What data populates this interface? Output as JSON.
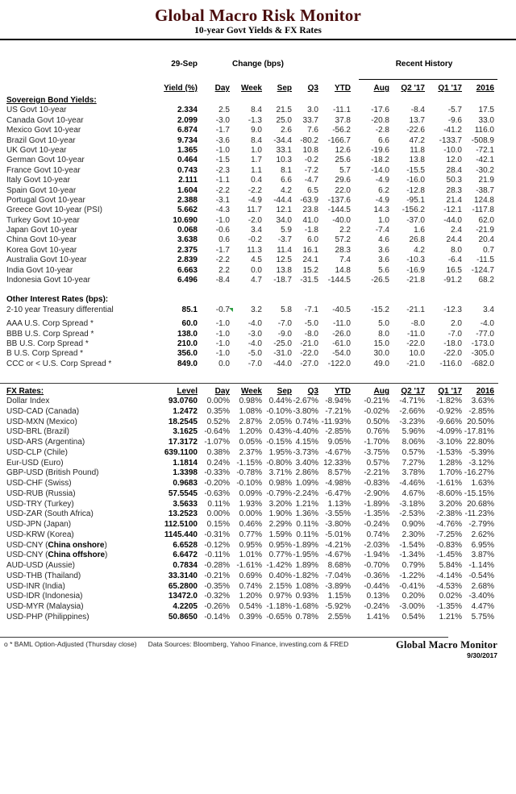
{
  "header": {
    "title": "Global Macro Risk Monitor",
    "subtitle": "10-year Govt Yields & FX Rates"
  },
  "column_groups": {
    "asof": "29-Sep",
    "change": "Change (bps)",
    "recent": "Recent History"
  },
  "bond_table": {
    "header_rows": [
      [
        "",
        "Yield (%)",
        "Day",
        "Week",
        "Sep",
        "Q3",
        "YTD",
        "Aug",
        "Q2 '17",
        "Q1 '17",
        "2016"
      ]
    ],
    "heading": "Sovereign Bond Yields:",
    "rows": [
      [
        "US Govt 10-year",
        "2.334",
        "2.5",
        "8.4",
        "21.5",
        "3.0",
        "-11.1",
        "-17.6",
        "-8.4",
        "-5.7",
        "17.5"
      ],
      [
        "Canada Govt 10-year",
        "2.099",
        "-3.0",
        "-1.3",
        "25.0",
        "33.7",
        "37.8",
        "-20.8",
        "13.7",
        "-9.6",
        "33.0"
      ],
      [
        "Mexico Govt 10-year",
        "6.874",
        "-1.7",
        "9.0",
        "2.6",
        "7.6",
        "-56.2",
        "-2.8",
        "-22.6",
        "-41.2",
        "116.0"
      ],
      [
        "Brazil Govt 10-year",
        "9.734",
        "-3.6",
        "8.4",
        "-34.4",
        "-80.2",
        "-166.7",
        "6.6",
        "47.2",
        "-133.7",
        "-508.9"
      ],
      [
        "UK Govt 10-year",
        "1.365",
        "-1.0",
        "1.0",
        "33.1",
        "10.8",
        "12.6",
        "-19.6",
        "11.8",
        "-10.0",
        "-72.1"
      ],
      [
        "German Govt 10-year",
        "0.464",
        "-1.5",
        "1.7",
        "10.3",
        "-0.2",
        "25.6",
        "-18.2",
        "13.8",
        "12.0",
        "-42.1"
      ],
      [
        "France Govt 10-year",
        "0.743",
        "-2.3",
        "1.1",
        "8.1",
        "-7.2",
        "5.7",
        "-14.0",
        "-15.5",
        "28.4",
        "-30.2"
      ],
      [
        "Italy Govt 10-year",
        "2.111",
        "-1.1",
        "0.4",
        "6.6",
        "-4.7",
        "29.6",
        "-4.9",
        "-16.0",
        "50.3",
        "21.9"
      ],
      [
        "Spain Govt 10-year",
        "1.604",
        "-2.2",
        "-2.2",
        "4.2",
        "6.5",
        "22.0",
        "6.2",
        "-12.8",
        "28.3",
        "-38.7"
      ],
      [
        "Portugal Govt 10-year",
        "2.388",
        "-3.1",
        "-4.9",
        "-44.4",
        "-63.9",
        "-137.6",
        "-4.9",
        "-95.1",
        "21.4",
        "124.8"
      ],
      [
        "Greece Govt 10-year (PSI)",
        "5.662",
        "-4.3",
        "11.7",
        "12.1",
        "23.8",
        "-144.5",
        "14.3",
        "-156.2",
        "-12.1",
        "-117.8"
      ],
      [
        "Turkey Govt 10-year",
        "10.690",
        "-1.0",
        "-2.0",
        "34.0",
        "41.0",
        "-40.0",
        "1.0",
        "-37.0",
        "-44.0",
        "62.0"
      ],
      [
        "Japan Govt 10-year",
        "0.068",
        "-0.6",
        "3.4",
        "5.9",
        "-1.8",
        "2.2",
        "-7.4",
        "1.6",
        "2.4",
        "-21.9"
      ],
      [
        "China Govt 10-year",
        "3.638",
        "0.6",
        "-0.2",
        "-3.7",
        "6.0",
        "57.2",
        "4.6",
        "26.8",
        "24.4",
        "20.4"
      ],
      [
        "Korea Govt 10-year",
        "2.375",
        "-1.7",
        "11.3",
        "11.4",
        "16.1",
        "28.3",
        "3.6",
        "4.2",
        "8.0",
        "0.7"
      ],
      [
        "Australia Govt 10-year",
        "2.839",
        "-2.2",
        "4.5",
        "12.5",
        "24.1",
        "7.4",
        "3.6",
        "-10.3",
        "-6.4",
        "-11.5"
      ],
      [
        "India Govt 10-year",
        "6.663",
        "2.2",
        "0.0",
        "13.8",
        "15.2",
        "14.8",
        "5.6",
        "-16.9",
        "16.5",
        "-124.7"
      ],
      [
        "Indonesia Govt 10-year",
        "6.496",
        "-8.4",
        "4.7",
        "-18.7",
        "-31.5",
        "-144.5",
        "-26.5",
        "-21.8",
        "-91.2",
        "68.2"
      ]
    ]
  },
  "rates_section": {
    "heading": "Other Interest Rates (bps):",
    "treasury_rows": [
      [
        "2-10 year Treasury differential",
        "85.1",
        "-0.7",
        "3.2",
        "5.8",
        "-7.1",
        "-40.5",
        "-15.2",
        "-21.1",
        "-12.3",
        "3.4"
      ]
    ],
    "comment_flag": "comment-flag",
    "corp_rows": [
      [
        "AAA U.S. Corp Spread *",
        "60.0",
        "-1.0",
        "-4.0",
        "-7.0",
        "-5.0",
        "-11.0",
        "5.0",
        "-8.0",
        "2.0",
        "-4.0"
      ],
      [
        "BBB U.S. Corp Spread *",
        "138.0",
        "-1.0",
        "-3.0",
        "-9.0",
        "-8.0",
        "-26.0",
        "8.0",
        "-11.0",
        "-7.0",
        "-77.0"
      ],
      [
        "BB U.S. Corp Spread *",
        "210.0",
        "-1.0",
        "-4.0",
        "-25.0",
        "-21.0",
        "-61.0",
        "15.0",
        "-22.0",
        "-18.0",
        "-173.0"
      ],
      [
        "B U.S. Corp Spread *",
        "356.0",
        "-1.0",
        "-5.0",
        "-31.0",
        "-22.0",
        "-54.0",
        "30.0",
        "10.0",
        "-22.0",
        "-305.0"
      ],
      [
        "CCC or < U.S. Corp Spread *",
        "849.0",
        "0.0",
        "-7.0",
        "-44.0",
        "-27.0",
        "-122.0",
        "49.0",
        "-21.0",
        "-116.0",
        "-682.0"
      ]
    ]
  },
  "fx_table": {
    "header_rows": [
      [
        "FX Rates:",
        "Level",
        "Day",
        "Week",
        "Sep",
        "Q3",
        "YTD",
        "Aug",
        "Q2 '17",
        "Q1 '17",
        "2016"
      ]
    ],
    "rows": [
      [
        "Dollar Index",
        "93.0760",
        "0.00%",
        "0.98%",
        "0.44%",
        "-2.67%",
        "-8.94%",
        "-0.21%",
        "-4.71%",
        "-1.82%",
        "3.63%"
      ],
      [
        "USD-CAD (Canada)",
        "1.2472",
        "0.35%",
        "1.08%",
        "-0.10%",
        "-3.80%",
        "-7.21%",
        "-0.02%",
        "-2.66%",
        "-0.92%",
        "-2.85%"
      ],
      [
        "USD-MXN  (Mexico)",
        "18.2545",
        "0.52%",
        "2.87%",
        "2.05%",
        "0.74%",
        "-11.93%",
        "0.50%",
        "-3.23%",
        "-9.66%",
        "20.50%"
      ],
      [
        "USD-BRL (Brazil)",
        "3.1625",
        "-0.64%",
        "1.20%",
        "0.43%",
        "-4.40%",
        "-2.85%",
        "0.76%",
        "5.96%",
        "-4.09%",
        "-17.81%"
      ],
      [
        "USD-ARS (Argentina)",
        "17.3172",
        "-1.07%",
        "0.05%",
        "-0.15%",
        "4.15%",
        "9.05%",
        "-1.70%",
        "8.06%",
        "-3.10%",
        "22.80%"
      ],
      [
        "USD-CLP (Chile)",
        "639.1100",
        "0.38%",
        "2.37%",
        "1.95%",
        "-3.73%",
        "-4.67%",
        "-3.75%",
        "0.57%",
        "-1.53%",
        "-5.39%"
      ],
      [
        "Eur-USD (Euro)",
        "1.1814",
        "0.24%",
        "-1.15%",
        "-0.80%",
        "3.40%",
        "12.33%",
        "0.57%",
        "7.27%",
        "1.28%",
        "-3.12%"
      ],
      [
        "GBP-USD (British Pound)",
        "1.3398",
        "-0.33%",
        "-0.78%",
        "3.71%",
        "2.86%",
        "8.57%",
        "-2.21%",
        "3.78%",
        "1.70%",
        "-16.27%"
      ],
      [
        "USD-CHF (Swiss)",
        "0.9683",
        "-0.20%",
        "-0.10%",
        "0.98%",
        "1.09%",
        "-4.98%",
        "-0.83%",
        "-4.46%",
        "-1.61%",
        "1.63%"
      ],
      [
        "USD-RUB (Russia)",
        "57.5545",
        "-0.63%",
        "0.09%",
        "-0.79%",
        "-2.24%",
        "-6.47%",
        "-2.90%",
        "4.67%",
        "-8.60%",
        "-15.15%"
      ],
      [
        "USD-TRY (Turkey)",
        "3.5633",
        "0.11%",
        "1.93%",
        "3.20%",
        "1.21%",
        "1.13%",
        "-1.89%",
        "-3.18%",
        "3.20%",
        "20.68%"
      ],
      [
        "USD-ZAR (South Africa)",
        "13.2523",
        "0.00%",
        "0.00%",
        "1.90%",
        "1.36%",
        "-3.55%",
        "-1.35%",
        "-2.53%",
        "-2.38%",
        "-11.23%"
      ],
      [
        "USD-JPN (Japan)",
        "112.5100",
        "0.15%",
        "0.46%",
        "2.29%",
        "0.11%",
        "-3.80%",
        "-0.24%",
        "0.90%",
        "-4.76%",
        "-2.79%"
      ],
      [
        "USD-KRW (Korea)",
        "1145.440",
        "-0.31%",
        "0.77%",
        "1.59%",
        "0.11%",
        "-5.01%",
        "0.74%",
        "2.30%",
        "-7.25%",
        "2.62%"
      ],
      {
        "c": [
          "USD-CNY (China onshore)",
          "6.6528",
          "-0.12%",
          "0.95%",
          "0.95%",
          "-1.89%",
          "-4.21%",
          "-2.03%",
          "-1.54%",
          "-0.83%",
          "6.95%"
        ],
        "b": "China onshore"
      },
      {
        "c": [
          "USD-CNY (China offshore)",
          "6.6472",
          "-0.11%",
          "1.01%",
          "0.77%",
          "-1.95%",
          "-4.67%",
          "-1.94%",
          "-1.34%",
          "-1.45%",
          "3.87%"
        ],
        "b": "China offshore"
      },
      [
        "AUD-USD (Aussie)",
        "0.7834",
        "-0.28%",
        "-1.61%",
        "-1.42%",
        "1.89%",
        "8.68%",
        "-0.70%",
        "0.79%",
        "5.84%",
        "-1.14%"
      ],
      [
        "USD-THB  (Thailand)",
        "33.3140",
        "-0.21%",
        "0.69%",
        "0.40%",
        "-1.82%",
        "-7.04%",
        "-0.36%",
        "-1.22%",
        "-4.14%",
        "-0.54%"
      ],
      [
        "USD-INR (India)",
        "65.2800",
        "-0.35%",
        "0.74%",
        "2.15%",
        "1.08%",
        "-3.89%",
        "-0.44%",
        "-0.41%",
        "-4.53%",
        "2.68%"
      ],
      [
        "USD-IDR (Indonesia)",
        "13472.0",
        "-0.32%",
        "1.20%",
        "0.97%",
        "0.93%",
        "1.15%",
        "0.13%",
        "0.20%",
        "0.02%",
        "-3.40%"
      ],
      [
        "USD-MYR (Malaysia)",
        "4.2205",
        "-0.26%",
        "0.54%",
        "-1.18%",
        "-1.68%",
        "-5.92%",
        "-0.24%",
        "-3.00%",
        "-1.35%",
        "4.47%"
      ],
      [
        "USD-PHP (Philippines)",
        "50.8650",
        "-0.14%",
        "0.39%",
        "-0.65%",
        "0.78%",
        "2.55%",
        "1.41%",
        "0.54%",
        "1.21%",
        "5.75%"
      ]
    ]
  },
  "footer": {
    "note": "o * BAML Option-Adjusted (Thursday close)",
    "sources": "Data Sources:  Bloomberg,  Yahoo Finance, investing.com & FRED",
    "brand": "Global Macro Monitor",
    "date": "9/30/2017"
  },
  "colors": {
    "title_maroon": "#4a0e0e",
    "comment_flag_green": "#2f9e44"
  }
}
